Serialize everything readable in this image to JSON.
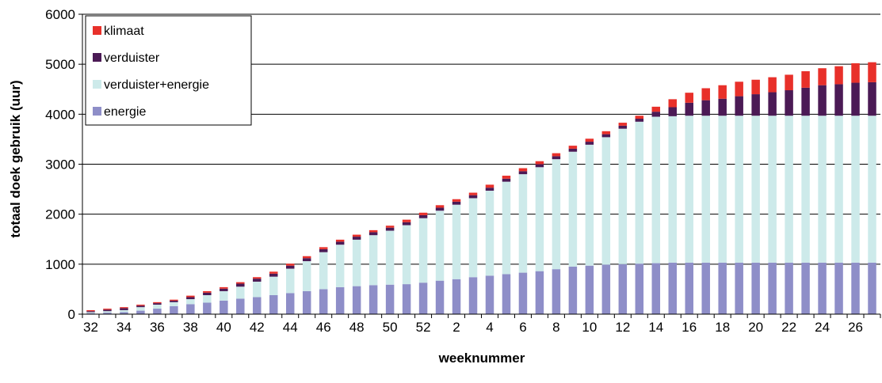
{
  "chart_data": {
    "type": "bar",
    "stacked": true,
    "xlabel": "weeknummer",
    "ylabel": "totaal doek gebruik (uur)",
    "ylim": [
      0,
      6000
    ],
    "yticks": [
      0,
      1000,
      2000,
      3000,
      4000,
      5000,
      6000
    ],
    "grid": true,
    "legend_position": "top-left",
    "categories": [
      "32",
      "33",
      "34",
      "35",
      "36",
      "37",
      "38",
      "39",
      "40",
      "41",
      "42",
      "43",
      "44",
      "45",
      "46",
      "47",
      "48",
      "49",
      "50",
      "51",
      "52",
      "1",
      "2",
      "3",
      "4",
      "5",
      "6",
      "7",
      "8",
      "9",
      "10",
      "11",
      "12",
      "13",
      "14",
      "15",
      "16",
      "17",
      "18",
      "19",
      "20",
      "21",
      "22",
      "23",
      "24",
      "25",
      "26",
      "27"
    ],
    "xtick_labels": [
      "32",
      "34",
      "36",
      "38",
      "40",
      "42",
      "44",
      "46",
      "48",
      "50",
      "52",
      "2",
      "4",
      "6",
      "8",
      "10",
      "12",
      "14",
      "16",
      "18",
      "20",
      "22",
      "24",
      "26"
    ],
    "series": [
      {
        "name": "energie",
        "color": "#8e8ec8",
        "values": [
          20,
          30,
          40,
          70,
          110,
          160,
          200,
          230,
          270,
          310,
          340,
          380,
          420,
          460,
          500,
          540,
          560,
          580,
          590,
          600,
          630,
          670,
          700,
          740,
          770,
          800,
          830,
          860,
          900,
          950,
          970,
          990,
          1000,
          1010,
          1020,
          1030,
          1030,
          1030,
          1030,
          1030,
          1030,
          1030,
          1030,
          1030,
          1030,
          1030,
          1030,
          1030
        ]
      },
      {
        "name": "verduister+energie",
        "color": "#cdeaea",
        "values": [
          20,
          30,
          40,
          70,
          80,
          80,
          100,
          150,
          190,
          240,
          310,
          370,
          490,
          600,
          740,
          850,
          930,
          1000,
          1080,
          1180,
          1290,
          1400,
          1490,
          1580,
          1700,
          1850,
          1970,
          2080,
          2200,
          2300,
          2420,
          2550,
          2710,
          2840,
          2930,
          2930,
          2940,
          2940,
          2940,
          2940,
          2940,
          2940,
          2940,
          2940,
          2940,
          2940,
          2940,
          2940
        ]
      },
      {
        "name": "verduister",
        "color": "#4b1a55",
        "values": [
          20,
          30,
          40,
          30,
          30,
          30,
          40,
          50,
          50,
          60,
          60,
          60,
          60,
          60,
          60,
          60,
          60,
          60,
          60,
          60,
          60,
          60,
          60,
          60,
          60,
          60,
          60,
          60,
          60,
          60,
          60,
          60,
          60,
          60,
          100,
          180,
          260,
          310,
          340,
          390,
          430,
          470,
          510,
          560,
          610,
          630,
          660,
          670
        ]
      },
      {
        "name": "klimaat",
        "color": "#e8302a",
        "values": [
          20,
          20,
          20,
          20,
          20,
          20,
          30,
          30,
          30,
          30,
          30,
          40,
          40,
          40,
          40,
          40,
          40,
          40,
          40,
          50,
          50,
          50,
          50,
          50,
          60,
          60,
          60,
          60,
          60,
          60,
          60,
          60,
          60,
          60,
          100,
          160,
          200,
          240,
          270,
          290,
          290,
          300,
          310,
          330,
          340,
          360,
          390,
          400
        ]
      }
    ]
  }
}
